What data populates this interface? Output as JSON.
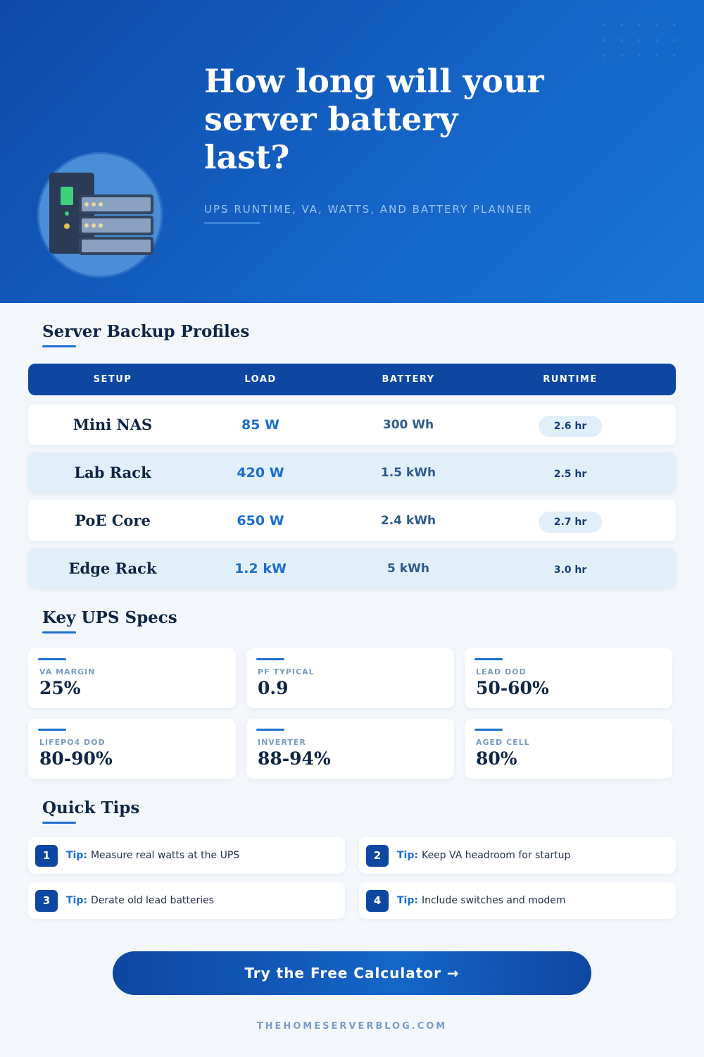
{
  "header": {
    "title": "How long will your server battery last?",
    "subtitle": "UPS RUNTIME, VA, WATTS, AND BATTERY PLANNER"
  },
  "profiles": {
    "heading": "Server Backup Profiles",
    "columns": [
      "SETUP",
      "LOAD",
      "BATTERY",
      "RUNTIME"
    ],
    "rows": [
      [
        "Mini NAS",
        "85 W",
        "300 Wh",
        "2.6 hr"
      ],
      [
        "Lab Rack",
        "420 W",
        "1.5 kWh",
        "2.5 hr"
      ],
      [
        "PoE Core",
        "650 W",
        "2.4 kWh",
        "2.7 hr"
      ],
      [
        "Edge Rack",
        "1.2 kW",
        "5 kWh",
        "3.0 hr"
      ]
    ]
  },
  "specs": {
    "heading": "Key UPS Specs",
    "items": [
      {
        "label": "VA MARGIN",
        "value": "25%"
      },
      {
        "label": "PF TYPICAL",
        "value": "0.9"
      },
      {
        "label": "LEAD DOD",
        "value": "50-60%"
      },
      {
        "label": "LIFEPO4 DOD",
        "value": "80-90%"
      },
      {
        "label": "INVERTER",
        "value": "88-94%"
      },
      {
        "label": "AGED CELL",
        "value": "80%"
      }
    ]
  },
  "tips": {
    "heading": "Quick Tips",
    "items": [
      {
        "number": "1",
        "prefix": "Tip:",
        "text": "Measure real watts at the UPS"
      },
      {
        "number": "2",
        "prefix": "Tip:",
        "text": "Keep VA headroom for startup"
      },
      {
        "number": "3",
        "prefix": "Tip:",
        "text": "Derate old lead batteries"
      },
      {
        "number": "4",
        "prefix": "Tip:",
        "text": "Include switches and modem"
      }
    ]
  },
  "cta": "Try the Free Calculator →",
  "footer": "THEHOMESERVERBLOG.COM"
}
